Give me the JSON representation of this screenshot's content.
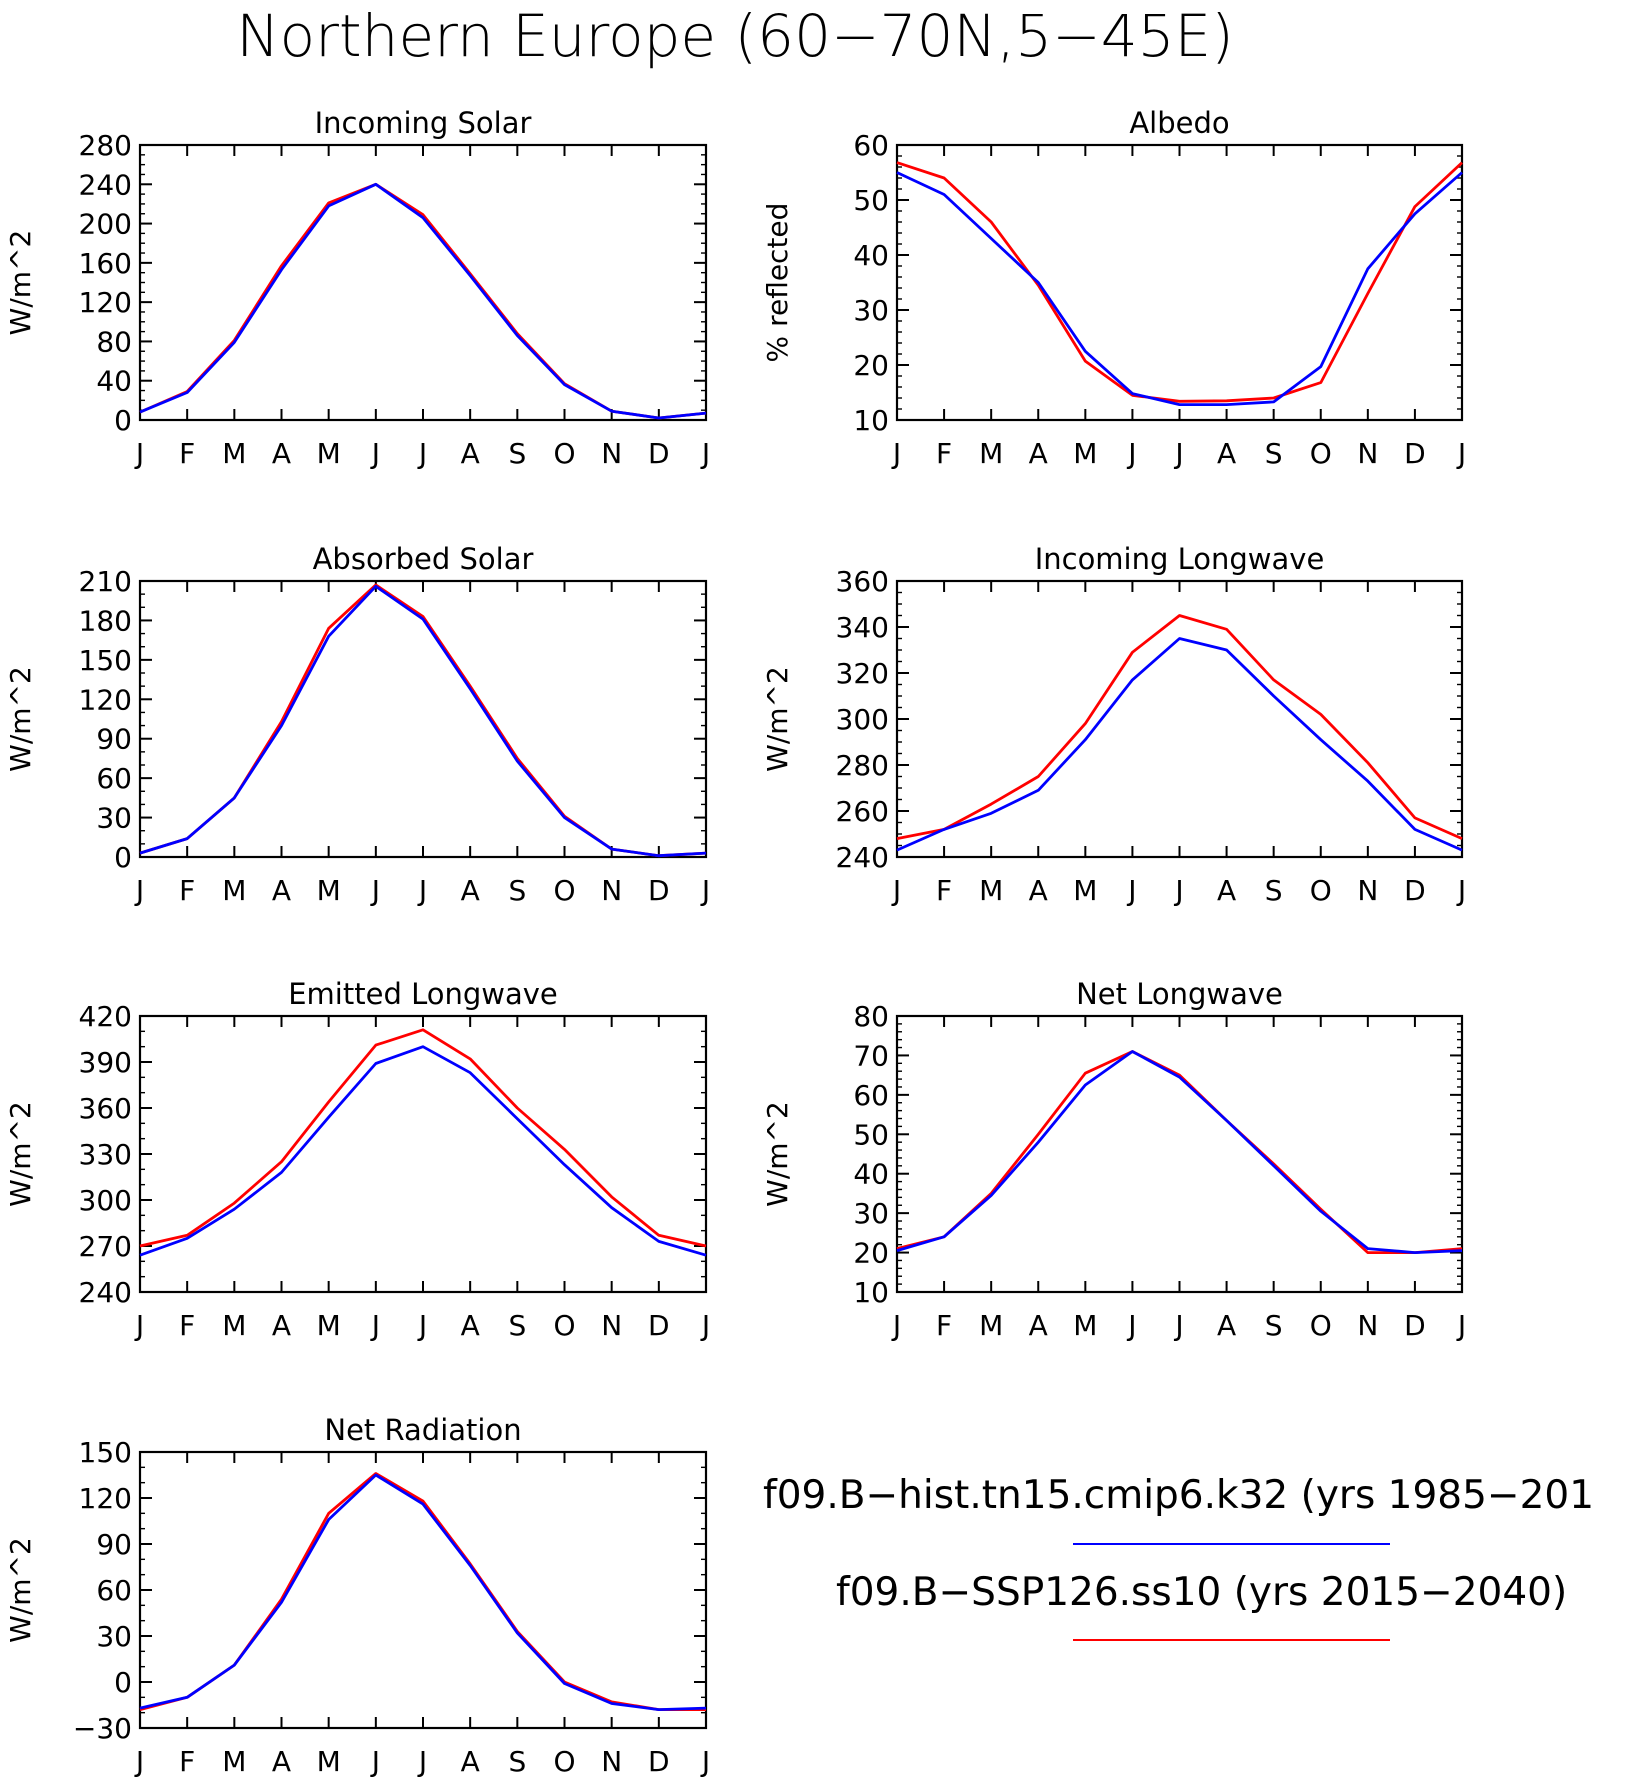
{
  "title": "Northern Europe (60−70N,5−45E)",
  "months": [
    "J",
    "F",
    "M",
    "A",
    "M",
    "J",
    "J",
    "A",
    "S",
    "O",
    "N",
    "D",
    "J"
  ],
  "colors": {
    "hist": "#0000ff",
    "ssp": "#ff0000",
    "axis": "#000000"
  },
  "legend": [
    {
      "label": "f09.B−hist.tn15.cmip6.k32 (yrs 1985−201",
      "color": "#0000ff"
    },
    {
      "label": "f09.B−SSP126.ss10 (yrs 2015−2040)",
      "color": "#ff0000"
    }
  ],
  "chart_data": [
    {
      "id": "incoming-solar",
      "type": "line",
      "title": "Incoming Solar",
      "ylabel": "W/m^2",
      "ylim": [
        0,
        280
      ],
      "yticks": [
        0,
        40,
        80,
        120,
        160,
        200,
        240,
        280
      ],
      "minor_step": 10,
      "categories": [
        "J",
        "F",
        "M",
        "A",
        "M",
        "J",
        "J",
        "A",
        "S",
        "O",
        "N",
        "D",
        "J"
      ],
      "series": [
        {
          "key": "hist",
          "values": [
            8,
            28,
            79,
            153,
            218,
            240,
            206,
            147,
            86,
            36,
            9,
            2,
            7
          ]
        },
        {
          "key": "ssp",
          "values": [
            8,
            29,
            81,
            157,
            221,
            240,
            209,
            149,
            88,
            37,
            9,
            2,
            7
          ]
        }
      ]
    },
    {
      "id": "albedo",
      "type": "line",
      "title": "Albedo",
      "ylabel": "% reflected",
      "ylim": [
        10,
        60
      ],
      "yticks": [
        10,
        20,
        30,
        40,
        50,
        60
      ],
      "minor_step": 2,
      "categories": [
        "J",
        "F",
        "M",
        "A",
        "M",
        "J",
        "J",
        "A",
        "S",
        "O",
        "N",
        "D",
        "J"
      ],
      "series": [
        {
          "key": "hist",
          "values": [
            55,
            51,
            43,
            35,
            22.5,
            14.8,
            12.8,
            12.8,
            13.3,
            19.7,
            37.5,
            47.5,
            55
          ]
        },
        {
          "key": "ssp",
          "values": [
            56.8,
            54,
            46,
            34.5,
            20.7,
            14.5,
            13.4,
            13.5,
            14,
            16.8,
            33,
            48.8,
            56.8
          ]
        }
      ]
    },
    {
      "id": "absorbed-solar",
      "type": "line",
      "title": "Absorbed Solar",
      "ylabel": "W/m^2",
      "ylim": [
        0,
        210
      ],
      "yticks": [
        0,
        30,
        60,
        90,
        120,
        150,
        180,
        210
      ],
      "minor_step": 10,
      "categories": [
        "J",
        "F",
        "M",
        "A",
        "M",
        "J",
        "J",
        "A",
        "S",
        "O",
        "N",
        "D",
        "J"
      ],
      "series": [
        {
          "key": "hist",
          "values": [
            3,
            14,
            45,
            100,
            168,
            206,
            181,
            128,
            73,
            30,
            6,
            1,
            3
          ]
        },
        {
          "key": "ssp",
          "values": [
            3,
            14,
            45,
            103,
            174,
            207,
            183,
            130,
            75,
            31,
            6,
            1,
            3
          ]
        }
      ]
    },
    {
      "id": "incoming-longwave",
      "type": "line",
      "title": "Incoming Longwave",
      "ylabel": "W/m^2",
      "ylim": [
        240,
        360
      ],
      "yticks": [
        240,
        260,
        280,
        300,
        320,
        340,
        360
      ],
      "minor_step": 5,
      "categories": [
        "J",
        "F",
        "M",
        "A",
        "M",
        "J",
        "J",
        "A",
        "S",
        "O",
        "N",
        "D",
        "J"
      ],
      "series": [
        {
          "key": "hist",
          "values": [
            243,
            252,
            259,
            269,
            291,
            317,
            335,
            330,
            310,
            291,
            273,
            252,
            243
          ]
        },
        {
          "key": "ssp",
          "values": [
            248,
            252,
            263,
            275,
            298,
            329,
            345,
            339,
            317,
            302,
            281,
            257,
            248
          ]
        }
      ]
    },
    {
      "id": "emitted-longwave",
      "type": "line",
      "title": "Emitted Longwave",
      "ylabel": "W/m^2",
      "ylim": [
        240,
        420
      ],
      "yticks": [
        240,
        270,
        300,
        330,
        360,
        390,
        420
      ],
      "minor_step": 10,
      "categories": [
        "J",
        "F",
        "M",
        "A",
        "M",
        "J",
        "J",
        "A",
        "S",
        "O",
        "N",
        "D",
        "J"
      ],
      "series": [
        {
          "key": "hist",
          "values": [
            264,
            275,
            294,
            318,
            354,
            389,
            400,
            383,
            353,
            323,
            295,
            273,
            264
          ]
        },
        {
          "key": "ssp",
          "values": [
            270,
            277,
            298,
            325,
            364,
            401,
            411,
            392,
            360,
            333,
            302,
            277,
            270
          ]
        }
      ]
    },
    {
      "id": "net-longwave",
      "type": "line",
      "title": "Net Longwave",
      "ylabel": "W/m^2",
      "ylim": [
        10,
        80
      ],
      "yticks": [
        10,
        20,
        30,
        40,
        50,
        60,
        70,
        80
      ],
      "minor_step": 2,
      "categories": [
        "J",
        "F",
        "M",
        "A",
        "M",
        "J",
        "J",
        "A",
        "S",
        "O",
        "N",
        "D",
        "J"
      ],
      "series": [
        {
          "key": "hist",
          "values": [
            20.5,
            24,
            34.5,
            48,
            62.5,
            71,
            64.5,
            53.5,
            42,
            30.5,
            21,
            20,
            20.5
          ]
        },
        {
          "key": "ssp",
          "values": [
            21,
            24,
            35,
            50,
            65.5,
            71,
            65,
            53.5,
            42.5,
            31,
            20,
            20,
            21
          ]
        }
      ]
    },
    {
      "id": "net-radiation",
      "type": "line",
      "title": "Net Radiation",
      "ylabel": "W/m^2",
      "ylim": [
        -30,
        150
      ],
      "yticks": [
        -30,
        0,
        30,
        60,
        90,
        120,
        150
      ],
      "minor_step": 10,
      "categories": [
        "J",
        "F",
        "M",
        "A",
        "M",
        "J",
        "J",
        "A",
        "S",
        "O",
        "N",
        "D",
        "J"
      ],
      "series": [
        {
          "key": "hist",
          "values": [
            -17,
            -10,
            11,
            52,
            106,
            135,
            116,
            76,
            32,
            -1,
            -14,
            -18,
            -17
          ]
        },
        {
          "key": "ssp",
          "values": [
            -18,
            -10,
            11,
            54,
            110,
            136,
            118,
            77,
            33,
            0,
            -13,
            -18,
            -18
          ]
        }
      ]
    }
  ]
}
